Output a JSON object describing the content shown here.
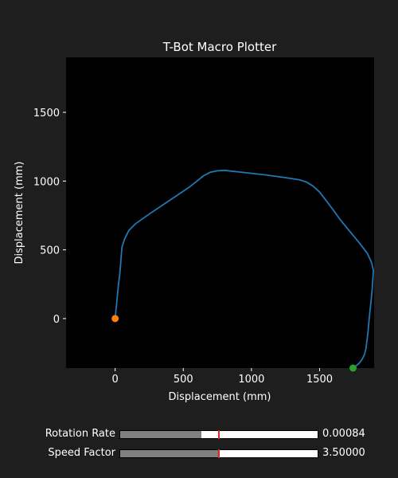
{
  "window": {
    "background": "#1e1e1e"
  },
  "chart_data": {
    "type": "line",
    "title": "T-Bot Macro Plotter",
    "xlabel": "Displacement (mm)",
    "ylabel": "Displacement (mm)",
    "xlim": [
      -360,
      1900
    ],
    "ylim": [
      -360,
      1900
    ],
    "x_ticks": [
      0,
      500,
      1000,
      1500
    ],
    "y_ticks": [
      0,
      500,
      1000,
      1500
    ],
    "plot_background": "#000000",
    "grid": false,
    "series": [
      {
        "color": "#1f77b4",
        "x": [
          0,
          5,
          15,
          25,
          35,
          50,
          70,
          100,
          150,
          250,
          400,
          550,
          600,
          650,
          700,
          750,
          800,
          950,
          1100,
          1250,
          1350,
          1400,
          1450,
          1500,
          1550,
          1600,
          1650,
          1700,
          1750,
          1800,
          1850,
          1880,
          1895,
          1890,
          1885,
          1878,
          1870,
          1862,
          1855,
          1845,
          1840,
          1830,
          1810,
          1790,
          1760,
          1745
        ],
        "y": [
          0,
          50,
          150,
          250,
          330,
          520,
          580,
          640,
          690,
          760,
          860,
          960,
          1000,
          1040,
          1065,
          1075,
          1078,
          1062,
          1045,
          1025,
          1010,
          995,
          965,
          920,
          855,
          790,
          720,
          660,
          600,
          540,
          475,
          410,
          350,
          280,
          200,
          130,
          60,
          -20,
          -100,
          -180,
          -220,
          -260,
          -300,
          -325,
          -350,
          -360
        ]
      }
    ],
    "markers": [
      {
        "label": "start",
        "x": 0,
        "y": 0,
        "color": "#ff7f0e"
      },
      {
        "label": "end",
        "x": 1745,
        "y": -360,
        "color": "#2ca02c"
      }
    ]
  },
  "sliders": [
    {
      "label": "Rotation Rate",
      "value_text": "0.00084",
      "fill": 0.41,
      "init_mark": 0.5
    },
    {
      "label": "Speed Factor",
      "value_text": "3.50000",
      "fill": 0.5,
      "init_mark": 0.5
    }
  ]
}
